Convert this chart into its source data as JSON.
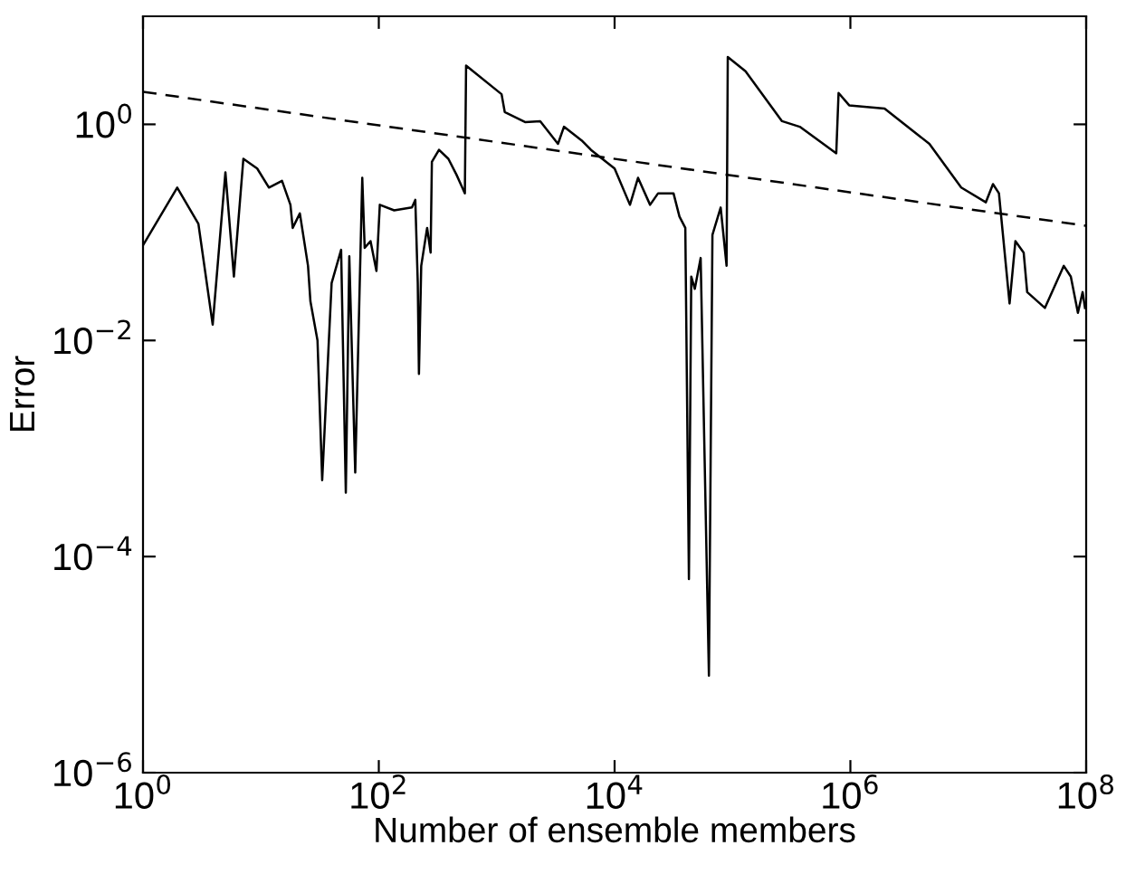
{
  "chart_data": {
    "type": "line",
    "xlabel": "Number of ensemble members",
    "ylabel": "Error",
    "log": "xy",
    "grid": false,
    "legend": false,
    "xlim": [
      1,
      100000000
    ],
    "ylim": [
      1e-06,
      10
    ],
    "xticks": [
      {
        "value": 1,
        "label": "10$^{0}$"
      },
      {
        "value": 100,
        "label": "10$^{2}$"
      },
      {
        "value": 10000,
        "label": "10$^{4}$"
      },
      {
        "value": 1000000,
        "label": "10$^{6}$"
      },
      {
        "value": 100000000,
        "label": "10$^{8}$"
      }
    ],
    "yticks": [
      {
        "value": 1e-06,
        "label": "10$^{−6}$"
      },
      {
        "value": 0.0001,
        "label": "10$^{−4}$"
      },
      {
        "value": 0.01,
        "label": "10$^{−2}$"
      },
      {
        "value": 1,
        "label": "10$^{0}$"
      }
    ],
    "series": [
      {
        "color": "#000000",
        "line_style": "solid",
        "x": [
          1,
          1.95,
          2.95,
          3.9,
          5.0,
          5.9,
          7.1,
          9.3,
          11.7,
          15.1,
          17.8,
          18.6,
          21.4,
          25.1,
          26.3,
          30.2,
          33.1,
          39.8,
          47.9,
          52.5,
          56.2,
          63.1,
          72.4,
          75.9,
          85.1,
          95.5,
          102,
          135,
          191,
          204,
          214,
          219,
          229,
          257,
          275,
          282,
          324,
          389,
          457,
          537,
          550,
          1100,
          1170,
          1740,
          2340,
          3310,
          3720,
          5250,
          6310,
          10000,
          13500,
          15800,
          20000,
          23400,
          31600,
          35500,
          39800,
          42700,
          44700,
          47900,
          53700,
          63100,
          67600,
          79400,
          89100,
          91200,
          129000,
          263000,
          372000,
          589000,
          759000,
          794000,
          977000,
          1950000,
          4680000,
          8710000,
          14100000,
          16200000,
          18200000,
          22400000,
          25100000,
          29500000,
          31600000,
          44700000,
          64600000,
          74100000,
          85100000,
          93300000,
          97700000
        ],
        "values": [
          0.076,
          0.26,
          0.12,
          0.014,
          0.36,
          0.039,
          0.48,
          0.39,
          0.26,
          0.3,
          0.18,
          0.11,
          0.15,
          0.049,
          0.023,
          0.01,
          0.00051,
          0.034,
          0.069,
          0.00039,
          0.06,
          0.0006,
          0.32,
          0.072,
          0.083,
          0.044,
          0.18,
          0.16,
          0.17,
          0.2,
          0.034,
          0.0049,
          0.049,
          0.11,
          0.065,
          0.45,
          0.58,
          0.48,
          0.34,
          0.23,
          3.5,
          1.9,
          1.3,
          1.05,
          1.07,
          0.66,
          0.95,
          0.71,
          0.58,
          0.39,
          0.18,
          0.32,
          0.18,
          0.23,
          0.23,
          0.14,
          0.11,
          6.2e-05,
          0.039,
          0.03,
          0.058,
          7.9e-06,
          0.095,
          0.17,
          0.049,
          4.2,
          3.1,
          1.07,
          0.95,
          0.66,
          0.54,
          1.95,
          1.5,
          1.4,
          0.66,
          0.26,
          0.19,
          0.28,
          0.23,
          0.022,
          0.083,
          0.065,
          0.028,
          0.02,
          0.049,
          0.039,
          0.018,
          0.028,
          0.02
        ]
      },
      {
        "color": "#000000",
        "line_style": "dashed",
        "x": [
          1,
          100000000
        ],
        "values": [
          2.0,
          0.115
        ]
      }
    ]
  }
}
